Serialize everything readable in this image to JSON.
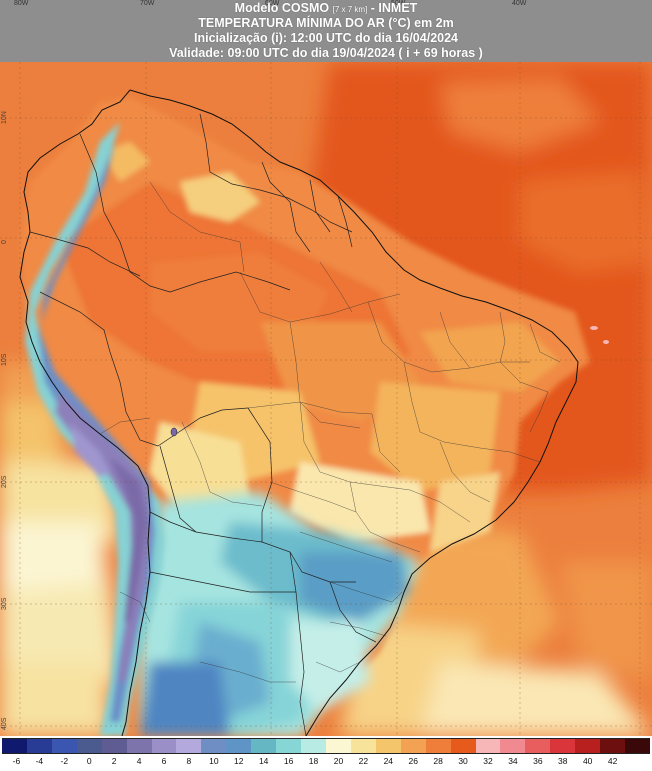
{
  "header": {
    "line1_prefix": "Modelo COSMO",
    "line1_small": "[7 x 7 km]",
    "line1_suffix": "- INMET",
    "line2": "TEMPERATURA MÍNIMA DO AR (°C) em 2m",
    "line3": "Inicialização (i): 12:00 UTC do dia 16/04/2024",
    "line4": "Validade: 09:00 UTC do dia 19/04/2024 ( i + 69 horas )"
  },
  "grid_labels": {
    "longitudes": [
      "80W",
      "70W",
      "60W",
      "50W",
      "40W",
      "30W"
    ],
    "latitudes": [
      "10N",
      "0",
      "10S",
      "20S",
      "30S",
      "40S"
    ]
  },
  "legend": {
    "labels": [
      "-6",
      "-4",
      "-2",
      "0",
      "2",
      "4",
      "6",
      "8",
      "10",
      "12",
      "14",
      "16",
      "18",
      "20",
      "22",
      "24",
      "26",
      "28",
      "30",
      "32",
      "34",
      "36",
      "38",
      "40",
      "42"
    ],
    "colors": [
      "#0f1a6e",
      "#283c95",
      "#3b56b0",
      "#4b5a8f",
      "#5f5c94",
      "#7d74ab",
      "#9b8fc7",
      "#b3a9dc",
      "#6f8fc4",
      "#5f95c6",
      "#66b7c4",
      "#86d6d6",
      "#b8ebe4",
      "#fbf7d2",
      "#f7e39a",
      "#f5c56b",
      "#f3a152",
      "#ee7e3a",
      "#e65a1c",
      "#f7b7b9",
      "#f08a90",
      "#e85e5e",
      "#d9353a",
      "#b8201f",
      "#6e0f0f",
      "#3a0808"
    ]
  }
}
